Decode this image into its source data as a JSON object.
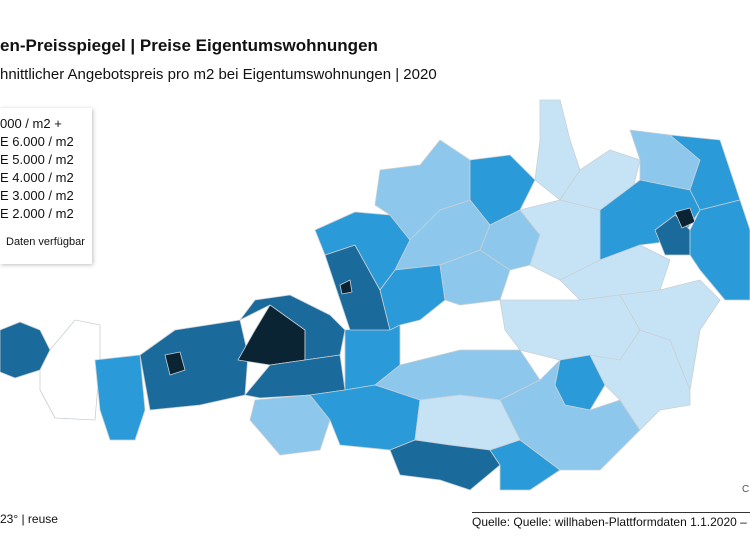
{
  "header": {
    "title": "en-Preisspiegel | Preise Eigentumswohnungen",
    "subtitle": "hnittlicher Angebotspreis pro m2 bei Eigentumswohnungen | 2020"
  },
  "legend": {
    "items": [
      {
        "label": "000 / m2 +",
        "color": "#0b2433"
      },
      {
        "label": "E 6.000 / m2",
        "color": "#1a6a9c"
      },
      {
        "label": "E 5.000 / m2",
        "color": "#2a9ad8"
      },
      {
        "label": "E 4.000 / m2",
        "color": "#8dc8ec"
      },
      {
        "label": "E 3.000 / m2",
        "color": "#c6e3f6"
      },
      {
        "label": "E 2.000 / m2",
        "color": "#ffffff"
      }
    ],
    "note": "Daten verfügbar"
  },
  "footer": {
    "left": "23° | reuse",
    "right": "Quelle: Quelle: willhaben-Plattformdaten 1.1.2020 –",
    "corner": "C"
  }
}
